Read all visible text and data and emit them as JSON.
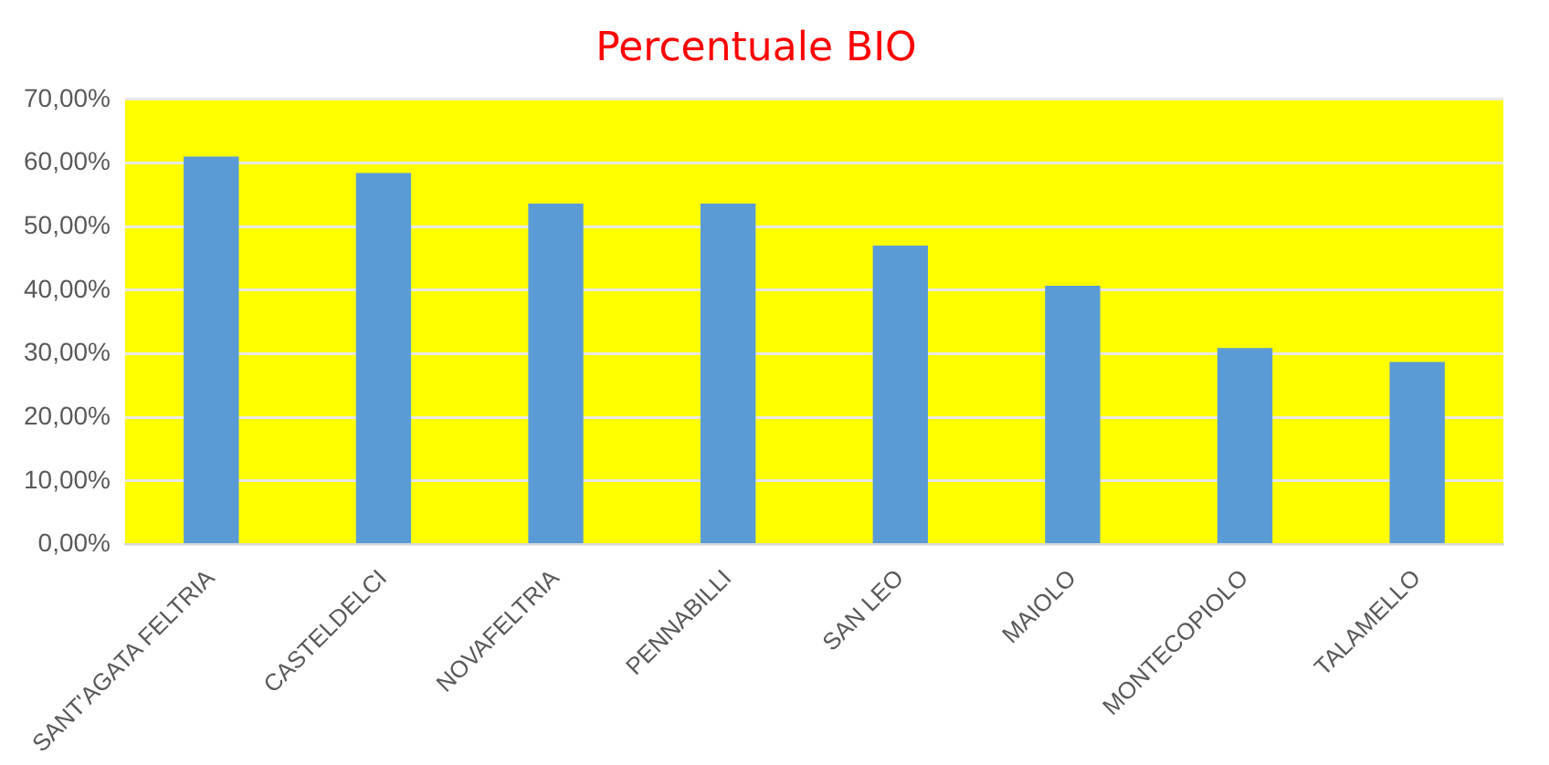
{
  "chart_data": {
    "type": "bar",
    "title": "Percentuale BIO",
    "categories": [
      "SANT'AGATA FELTRIA",
      "CASTELDELCI",
      "NOVAFELTRIA",
      "PENNABILLI",
      "SAN LEO",
      "MAIOLO",
      "MONTECOPIOLO",
      "TALAMELLO"
    ],
    "values": [
      61,
      58.4,
      53.6,
      53.6,
      47,
      40.7,
      30.9,
      28.7
    ],
    "color": "#5b9bd5",
    "ylim": [
      0,
      70
    ],
    "yticks": [
      {
        "value": 0,
        "label": "0,00%"
      },
      {
        "value": 10,
        "label": "10,00%"
      },
      {
        "value": 20,
        "label": "20,00%"
      },
      {
        "value": 30,
        "label": "30,00%"
      },
      {
        "value": 40,
        "label": "40,00%"
      },
      {
        "value": 50,
        "label": "50,00%"
      },
      {
        "value": 60,
        "label": "60,00%"
      },
      {
        "value": 70,
        "label": "70,00%"
      }
    ],
    "grid": "y"
  }
}
